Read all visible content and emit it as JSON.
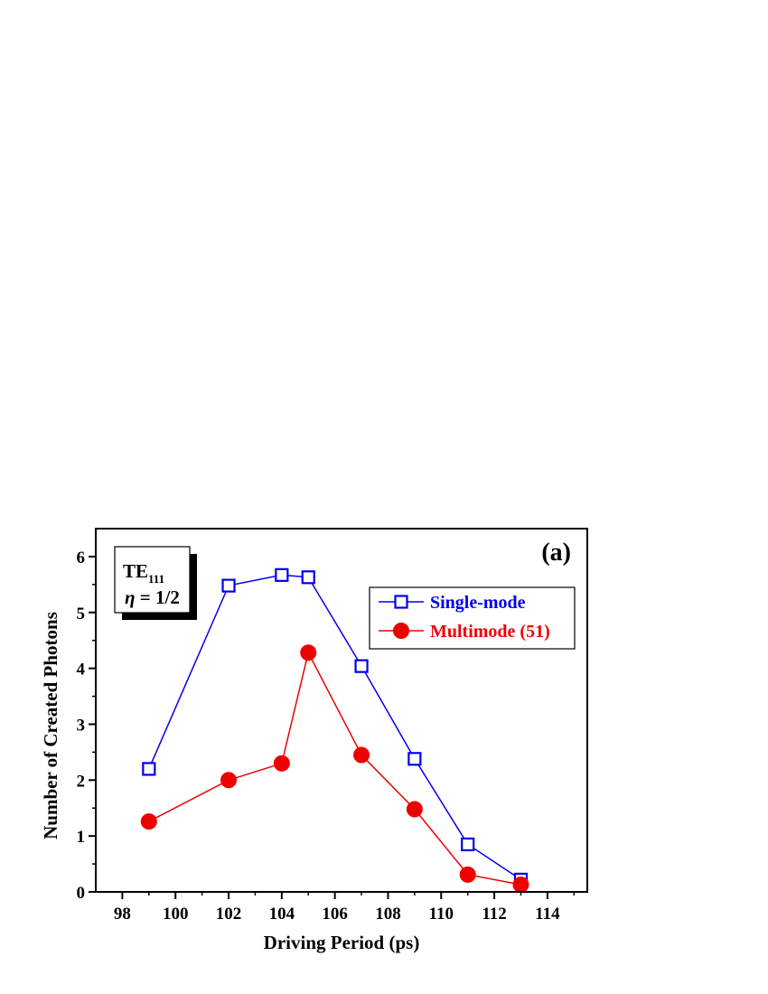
{
  "chart_data": {
    "type": "line",
    "panel_label": "(a)",
    "xlabel": "Driving Period (ps)",
    "ylabel": "Number of Created Photons",
    "xlim": [
      97,
      115.5
    ],
    "ylim": [
      0,
      6.5
    ],
    "x_ticks": [
      98,
      100,
      102,
      104,
      106,
      108,
      110,
      112,
      114
    ],
    "x_minor_ticks": [
      99,
      101,
      103,
      105,
      107,
      109,
      111,
      113,
      115
    ],
    "y_ticks": [
      0,
      1,
      2,
      3,
      4,
      5,
      6
    ],
    "y_minor_ticks": [
      0.5,
      1.5,
      2.5,
      3.5,
      4.5,
      5.5
    ],
    "info_box": {
      "mode_main": "TE",
      "mode_sub": "111",
      "eta_symbol": "η",
      "eta_value": " = 1/2"
    },
    "legend_position": "upper-right",
    "series": [
      {
        "name": "Single-mode",
        "color": "#0000ee",
        "marker": "open-square",
        "x": [
          99,
          102,
          104,
          105,
          107,
          109,
          111,
          113
        ],
        "y": [
          2.2,
          5.48,
          5.67,
          5.63,
          4.04,
          2.38,
          0.85,
          0.22
        ]
      },
      {
        "name": "Multimode (51)",
        "color": "#ee0000",
        "marker": "filled-circle",
        "x": [
          99,
          102,
          104,
          105,
          107,
          109,
          111,
          113
        ],
        "y": [
          1.26,
          2.0,
          2.3,
          4.28,
          2.45,
          1.48,
          0.31,
          0.13
        ]
      }
    ]
  }
}
